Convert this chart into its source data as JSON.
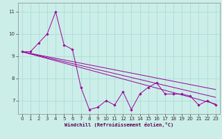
{
  "xlabel": "Windchill (Refroidissement éolien,°C)",
  "background_color": "#cceee8",
  "grid_color": "#aaddda",
  "line_color": "#990099",
  "marker_color": "#990099",
  "xlim": [
    -0.5,
    23.5
  ],
  "ylim": [
    6.4,
    11.4
  ],
  "yticks": [
    7,
    8,
    9,
    10,
    11
  ],
  "xticks": [
    0,
    1,
    2,
    3,
    4,
    5,
    6,
    7,
    8,
    9,
    10,
    11,
    12,
    13,
    14,
    15,
    16,
    17,
    18,
    19,
    20,
    21,
    22,
    23
  ],
  "series_main": {
    "x": [
      0,
      1,
      2,
      3,
      4,
      5,
      6,
      7,
      8,
      9,
      10,
      11,
      12,
      13,
      14,
      15,
      16,
      17,
      18,
      19,
      20,
      21,
      22,
      23
    ],
    "y": [
      9.2,
      9.2,
      9.6,
      10.0,
      11.0,
      9.5,
      9.3,
      7.6,
      6.6,
      6.7,
      7.0,
      6.8,
      7.4,
      6.6,
      7.3,
      7.6,
      7.8,
      7.3,
      7.3,
      7.3,
      7.2,
      6.8,
      7.0,
      6.8
    ]
  },
  "series_linear": [
    {
      "x": [
        0,
        23
      ],
      "y": [
        9.2,
        6.85
      ]
    },
    {
      "x": [
        0,
        23
      ],
      "y": [
        9.2,
        7.15
      ]
    },
    {
      "x": [
        0,
        23
      ],
      "y": [
        9.2,
        7.5
      ]
    }
  ]
}
